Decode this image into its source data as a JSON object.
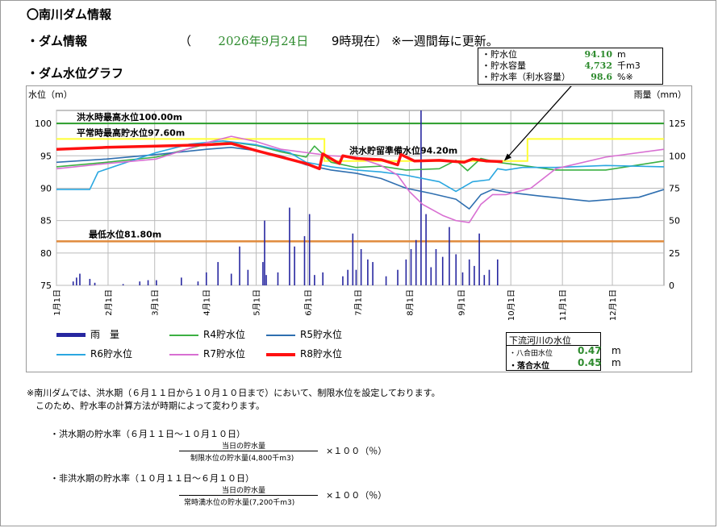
{
  "title": "〇南川ダム情報",
  "dam_info": {
    "label": "・ダム情報",
    "open_paren": "（",
    "date": "2026年9月24日",
    "time": "9時現在）",
    "note": "※一週間毎に更新。"
  },
  "graph_label": "・ダム水位グラフ",
  "stats": [
    {
      "label": "・貯水位",
      "value": "94.10",
      "unit": "m"
    },
    {
      "label": "・貯水容量",
      "value": "4,732",
      "unit": "千m3"
    },
    {
      "label": "・貯水率（利水容量）",
      "value": "98.6",
      "unit": "%※"
    }
  ],
  "downstream": {
    "title": "下流河川の水位",
    "rows": [
      {
        "label": "・八合田水位",
        "value": "0.47",
        "unit": "m"
      },
      {
        "label": "・落合水位",
        "value": "0.45",
        "unit": "m"
      }
    ]
  },
  "notes": [
    "※南川ダムでは、洪水期（６月１１日から１０月１０日まで）において、制限水位を設定しております。",
    "　このため、貯水率の計算方法が時期によって変わります。"
  ],
  "formulas": [
    {
      "title": "・洪水期の貯水率（６月１１日〜１０月１０日）",
      "numerator": "当日の貯水量",
      "denominator": "制限水位の貯水量(4,800千m3)",
      "factor": "×１００（％）"
    },
    {
      "title": "・非洪水期の貯水率（１０月１１日〜６月１０日）",
      "numerator": "当日の貯水量",
      "denominator": "常時満水位の貯水量(7,200千m3)",
      "factor": "×１００（％）"
    }
  ],
  "chart_data": {
    "type": "line",
    "ylabel": "水位（m）",
    "y2label": "雨量（mm）",
    "ylim": [
      75,
      102
    ],
    "y2lim": [
      0,
      135
    ],
    "yticks": [
      75,
      80,
      85,
      90,
      95,
      100
    ],
    "y2ticks": [
      0,
      25,
      50,
      75,
      100,
      125
    ],
    "xticks": [
      "1月1日",
      "2月1日",
      "3月1日",
      "4月1日",
      "5月1日",
      "6月1日",
      "7月1日",
      "8月1日",
      "9月1日",
      "10月1日",
      "11月1日",
      "12月1日"
    ],
    "reference_lines": [
      {
        "label": "洪水時最高水位100.00m",
        "value": 100.0,
        "color": "#2a9d2a"
      },
      {
        "label": "平常時最高貯水位97.60m",
        "value": 97.6,
        "color": "#ffff33"
      },
      {
        "label": "洪水貯留準備水位94.20m",
        "value": 94.2,
        "color": "#ffff33"
      },
      {
        "label": "最低水位81.80m",
        "value": 81.8,
        "color": "#e08a3c"
      }
    ],
    "series": [
      {
        "name": "R4貯水位",
        "color": "#3cb043",
        "x": [
          0,
          30,
          60,
          90,
          105,
          120,
          135,
          150,
          155,
          165,
          180,
          195,
          210,
          230,
          240,
          247,
          255,
          265,
          280,
          300,
          330,
          365
        ],
        "y": [
          93.3,
          94.0,
          94.8,
          96.8,
          97.1,
          96.6,
          95.6,
          94.8,
          96.5,
          94.0,
          93.2,
          93.4,
          92.8,
          93.0,
          94.3,
          92.7,
          94.6,
          94.0,
          93.5,
          92.8,
          92.8,
          94.2
        ]
      },
      {
        "name": "R5貯水位",
        "color": "#2f6fb0",
        "x": [
          0,
          30,
          60,
          90,
          105,
          120,
          135,
          150,
          165,
          180,
          195,
          210,
          225,
          240,
          248,
          255,
          262,
          270,
          290,
          320,
          350,
          365
        ],
        "y": [
          94.0,
          94.5,
          95.2,
          96.0,
          96.3,
          95.8,
          95.0,
          93.6,
          92.8,
          92.3,
          91.5,
          90.0,
          89.2,
          88.3,
          86.8,
          89.0,
          89.8,
          89.4,
          88.8,
          88.0,
          88.6,
          89.8
        ]
      },
      {
        "name": "R6貯水位",
        "color": "#2aa7e0",
        "x": [
          0,
          20,
          25,
          40,
          60,
          80,
          100,
          120,
          140,
          150,
          165,
          180,
          195,
          210,
          230,
          240,
          250,
          260,
          265,
          270,
          280,
          300,
          330,
          365
        ],
        "y": [
          89.8,
          89.8,
          92.5,
          93.8,
          95.5,
          96.8,
          97.3,
          96.7,
          95.5,
          94.0,
          93.3,
          92.8,
          92.5,
          92.0,
          91.0,
          89.5,
          91.0,
          91.3,
          93.0,
          92.8,
          93.2,
          93.2,
          93.5,
          93.3
        ]
      },
      {
        "name": "R7貯水位",
        "color": "#d86fd2",
        "x": [
          0,
          30,
          60,
          90,
          105,
          120,
          135,
          150,
          165,
          180,
          195,
          205,
          212,
          220,
          232,
          240,
          248,
          255,
          262,
          270,
          285,
          300,
          330,
          365
        ],
        "y": [
          93.0,
          93.8,
          94.5,
          97.0,
          98.0,
          97.2,
          96.0,
          95.5,
          95.0,
          94.8,
          93.5,
          92.0,
          89.5,
          87.5,
          85.8,
          85.0,
          84.7,
          87.5,
          89.0,
          89.0,
          90.0,
          93.0,
          94.8,
          96.0
        ]
      },
      {
        "name": "R8貯水位",
        "color": "#ff1010",
        "width": 3.5,
        "x": [
          0,
          30,
          60,
          90,
          105,
          120,
          135,
          150,
          158,
          160,
          170,
          172,
          180,
          195,
          205,
          207,
          215,
          230,
          245,
          250,
          258,
          268
        ],
        "y": [
          96.0,
          96.3,
          96.5,
          96.7,
          96.9,
          95.8,
          94.8,
          93.8,
          93.0,
          95.3,
          93.8,
          95.0,
          94.6,
          94.4,
          93.6,
          95.2,
          94.2,
          94.3,
          94.0,
          94.5,
          94.2,
          94.1
        ]
      }
    ],
    "rain_series_name": "雨　量",
    "rain_color": "#2727a0",
    "rainfall": [
      [
        10,
        3
      ],
      [
        12,
        6
      ],
      [
        14,
        9
      ],
      [
        20,
        5
      ],
      [
        23,
        2
      ],
      [
        40,
        1
      ],
      [
        50,
        3
      ],
      [
        55,
        4
      ],
      [
        60,
        4
      ],
      [
        75,
        6
      ],
      [
        85,
        3
      ],
      [
        90,
        10
      ],
      [
        97,
        18
      ],
      [
        105,
        9
      ],
      [
        110,
        30
      ],
      [
        115,
        12
      ],
      [
        124,
        18
      ],
      [
        125,
        50
      ],
      [
        126,
        8
      ],
      [
        133,
        10
      ],
      [
        140,
        60
      ],
      [
        143,
        30
      ],
      [
        149,
        38
      ],
      [
        152,
        55
      ],
      [
        155,
        8
      ],
      [
        160,
        10
      ],
      [
        172,
        7
      ],
      [
        175,
        12
      ],
      [
        178,
        40
      ],
      [
        180,
        12
      ],
      [
        183,
        28
      ],
      [
        187,
        20
      ],
      [
        190,
        18
      ],
      [
        198,
        7
      ],
      [
        205,
        12
      ],
      [
        210,
        20
      ],
      [
        213,
        28
      ],
      [
        216,
        35
      ],
      [
        219,
        142
      ],
      [
        222,
        55
      ],
      [
        225,
        14
      ],
      [
        228,
        28
      ],
      [
        232,
        22
      ],
      [
        236,
        45
      ],
      [
        240,
        24
      ],
      [
        244,
        10
      ],
      [
        248,
        20
      ],
      [
        251,
        15
      ],
      [
        254,
        40
      ],
      [
        257,
        8
      ],
      [
        260,
        12
      ],
      [
        265,
        20
      ]
    ]
  },
  "legend": [
    {
      "name": "雨　量",
      "color": "#2727a0",
      "kind": "bar"
    },
    {
      "name": "R4貯水位",
      "color": "#3cb043",
      "kind": "line"
    },
    {
      "name": "R5貯水位",
      "color": "#2f6fb0",
      "kind": "line"
    },
    {
      "name": "R6貯水位",
      "color": "#2aa7e0",
      "kind": "line"
    },
    {
      "name": "R7貯水位",
      "color": "#d86fd2",
      "kind": "line"
    },
    {
      "name": "R8貯水位",
      "color": "#ff1010",
      "kind": "line"
    }
  ]
}
